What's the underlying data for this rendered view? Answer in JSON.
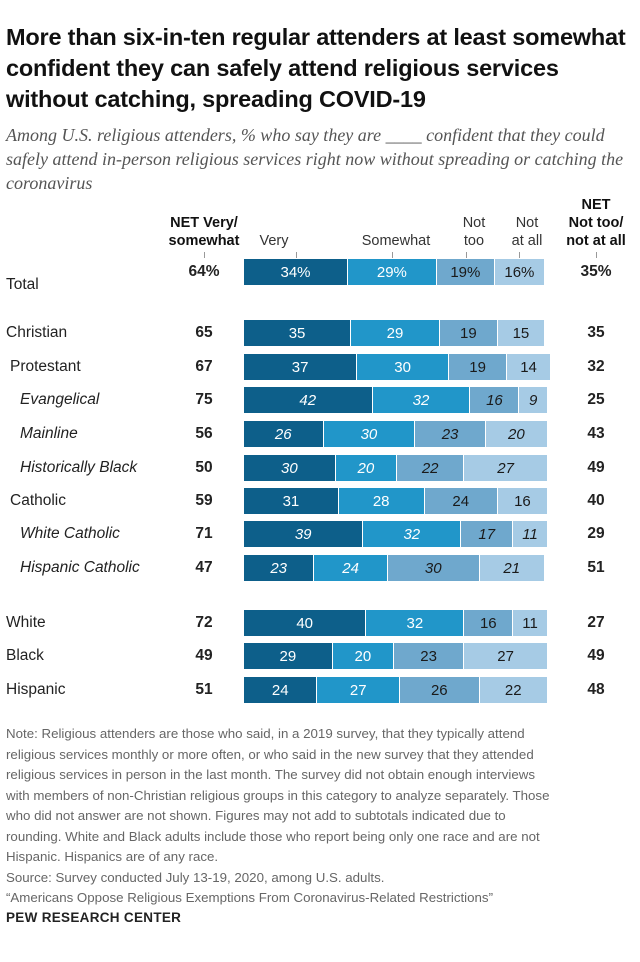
{
  "title": "More than six-in-ten regular attenders at least somewhat confident they can safely attend religious services without catching, spreading COVID-19",
  "subtitle": "Among U.S. religious attenders, % who say they are ____ confident that they could safely attend in-person religious services right now without spreading or catching the coronavirus",
  "headers": {
    "net_left_1": "NET Very/",
    "net_left_2": "somewhat",
    "very": "Very",
    "somewhat": "Somewhat",
    "not_too_1": "Not",
    "not_too_2": "too",
    "not_at_all_1": "Not",
    "not_at_all_2": "at all",
    "net_right_1": "NET",
    "net_right_2": "Not too/",
    "net_right_3": "not at all"
  },
  "colors": {
    "very": "#0d5f8a",
    "somewhat": "#2196c9",
    "not_too": "#6fa8cd",
    "not_at_all": "#a6cbe5"
  },
  "chart_data": {
    "type": "bar",
    "orientation": "horizontal",
    "stacked": true,
    "series": [
      {
        "name": "Very",
        "values": [
          34,
          35,
          37,
          42,
          26,
          30,
          31,
          39,
          23,
          40,
          29,
          24
        ]
      },
      {
        "name": "Somewhat",
        "values": [
          29,
          29,
          30,
          32,
          30,
          20,
          28,
          32,
          24,
          32,
          20,
          27
        ]
      },
      {
        "name": "Not too",
        "values": [
          19,
          19,
          19,
          16,
          23,
          22,
          24,
          17,
          30,
          16,
          23,
          26
        ]
      },
      {
        "name": "Not at all",
        "values": [
          16,
          15,
          14,
          9,
          20,
          27,
          16,
          11,
          21,
          11,
          27,
          22
        ]
      }
    ],
    "rows": [
      {
        "label": "Total",
        "net_left": "64%",
        "net_right": "35%",
        "italic": false,
        "indent": 0,
        "labels": [
          "34%",
          "29%",
          "19%",
          "16%"
        ]
      },
      {
        "label": "Christian",
        "net_left": "65",
        "net_right": "35",
        "italic": false,
        "indent": 0,
        "labels": [
          "35",
          "29",
          "19",
          "15"
        ]
      },
      {
        "label": "Protestant",
        "net_left": "67",
        "net_right": "32",
        "italic": false,
        "indent": 1,
        "labels": [
          "37",
          "30",
          "19",
          "14"
        ]
      },
      {
        "label": "Evangelical",
        "net_left": "75",
        "net_right": "25",
        "italic": true,
        "indent": 2,
        "labels": [
          "42",
          "32",
          "16",
          "9"
        ]
      },
      {
        "label": "Mainline",
        "net_left": "56",
        "net_right": "43",
        "italic": true,
        "indent": 2,
        "labels": [
          "26",
          "30",
          "23",
          "20"
        ]
      },
      {
        "label": "Historically Black",
        "net_left": "50",
        "net_right": "49",
        "italic": true,
        "indent": 2,
        "labels": [
          "30",
          "20",
          "22",
          "27"
        ]
      },
      {
        "label": "Catholic",
        "net_left": "59",
        "net_right": "40",
        "italic": false,
        "indent": 1,
        "labels": [
          "31",
          "28",
          "24",
          "16"
        ]
      },
      {
        "label": "White Catholic",
        "net_left": "71",
        "net_right": "29",
        "italic": true,
        "indent": 2,
        "labels": [
          "39",
          "32",
          "17",
          "11"
        ]
      },
      {
        "label": "Hispanic Catholic",
        "net_left": "47",
        "net_right": "51",
        "italic": true,
        "indent": 2,
        "labels": [
          "23",
          "24",
          "30",
          "21"
        ]
      },
      {
        "label": "White",
        "net_left": "72",
        "net_right": "27",
        "italic": false,
        "indent": 0,
        "labels": [
          "40",
          "32",
          "16",
          "11"
        ]
      },
      {
        "label": "Black",
        "net_left": "49",
        "net_right": "49",
        "italic": false,
        "indent": 0,
        "labels": [
          "29",
          "20",
          "23",
          "27"
        ]
      },
      {
        "label": "Hispanic",
        "net_left": "51",
        "net_right": "48",
        "italic": false,
        "indent": 0,
        "labels": [
          "24",
          "27",
          "26",
          "22"
        ]
      }
    ],
    "xlim": [
      0,
      100
    ]
  },
  "note_lines": [
    "Note: Religious attenders are those who said, in a 2019 survey, that they typically attend",
    "religious services monthly or more often, or who said in the new survey that they attended",
    "religious services in person in the last month. The survey did not obtain enough interviews",
    "with members of non-Christian religious groups in this category to analyze separately. Those",
    "who did not answer are not shown. Figures may not add to subtotals indicated due to",
    "rounding. White and Black adults include those who report being only one race and are not",
    "Hispanic. Hispanics are of any race.",
    "Source: Survey conducted July 13-19, 2020, among U.S. adults.",
    "“Americans Oppose Religious Exemptions From Coronavirus-Related Restrictions”"
  ],
  "brand": "PEW RESEARCH CENTER"
}
